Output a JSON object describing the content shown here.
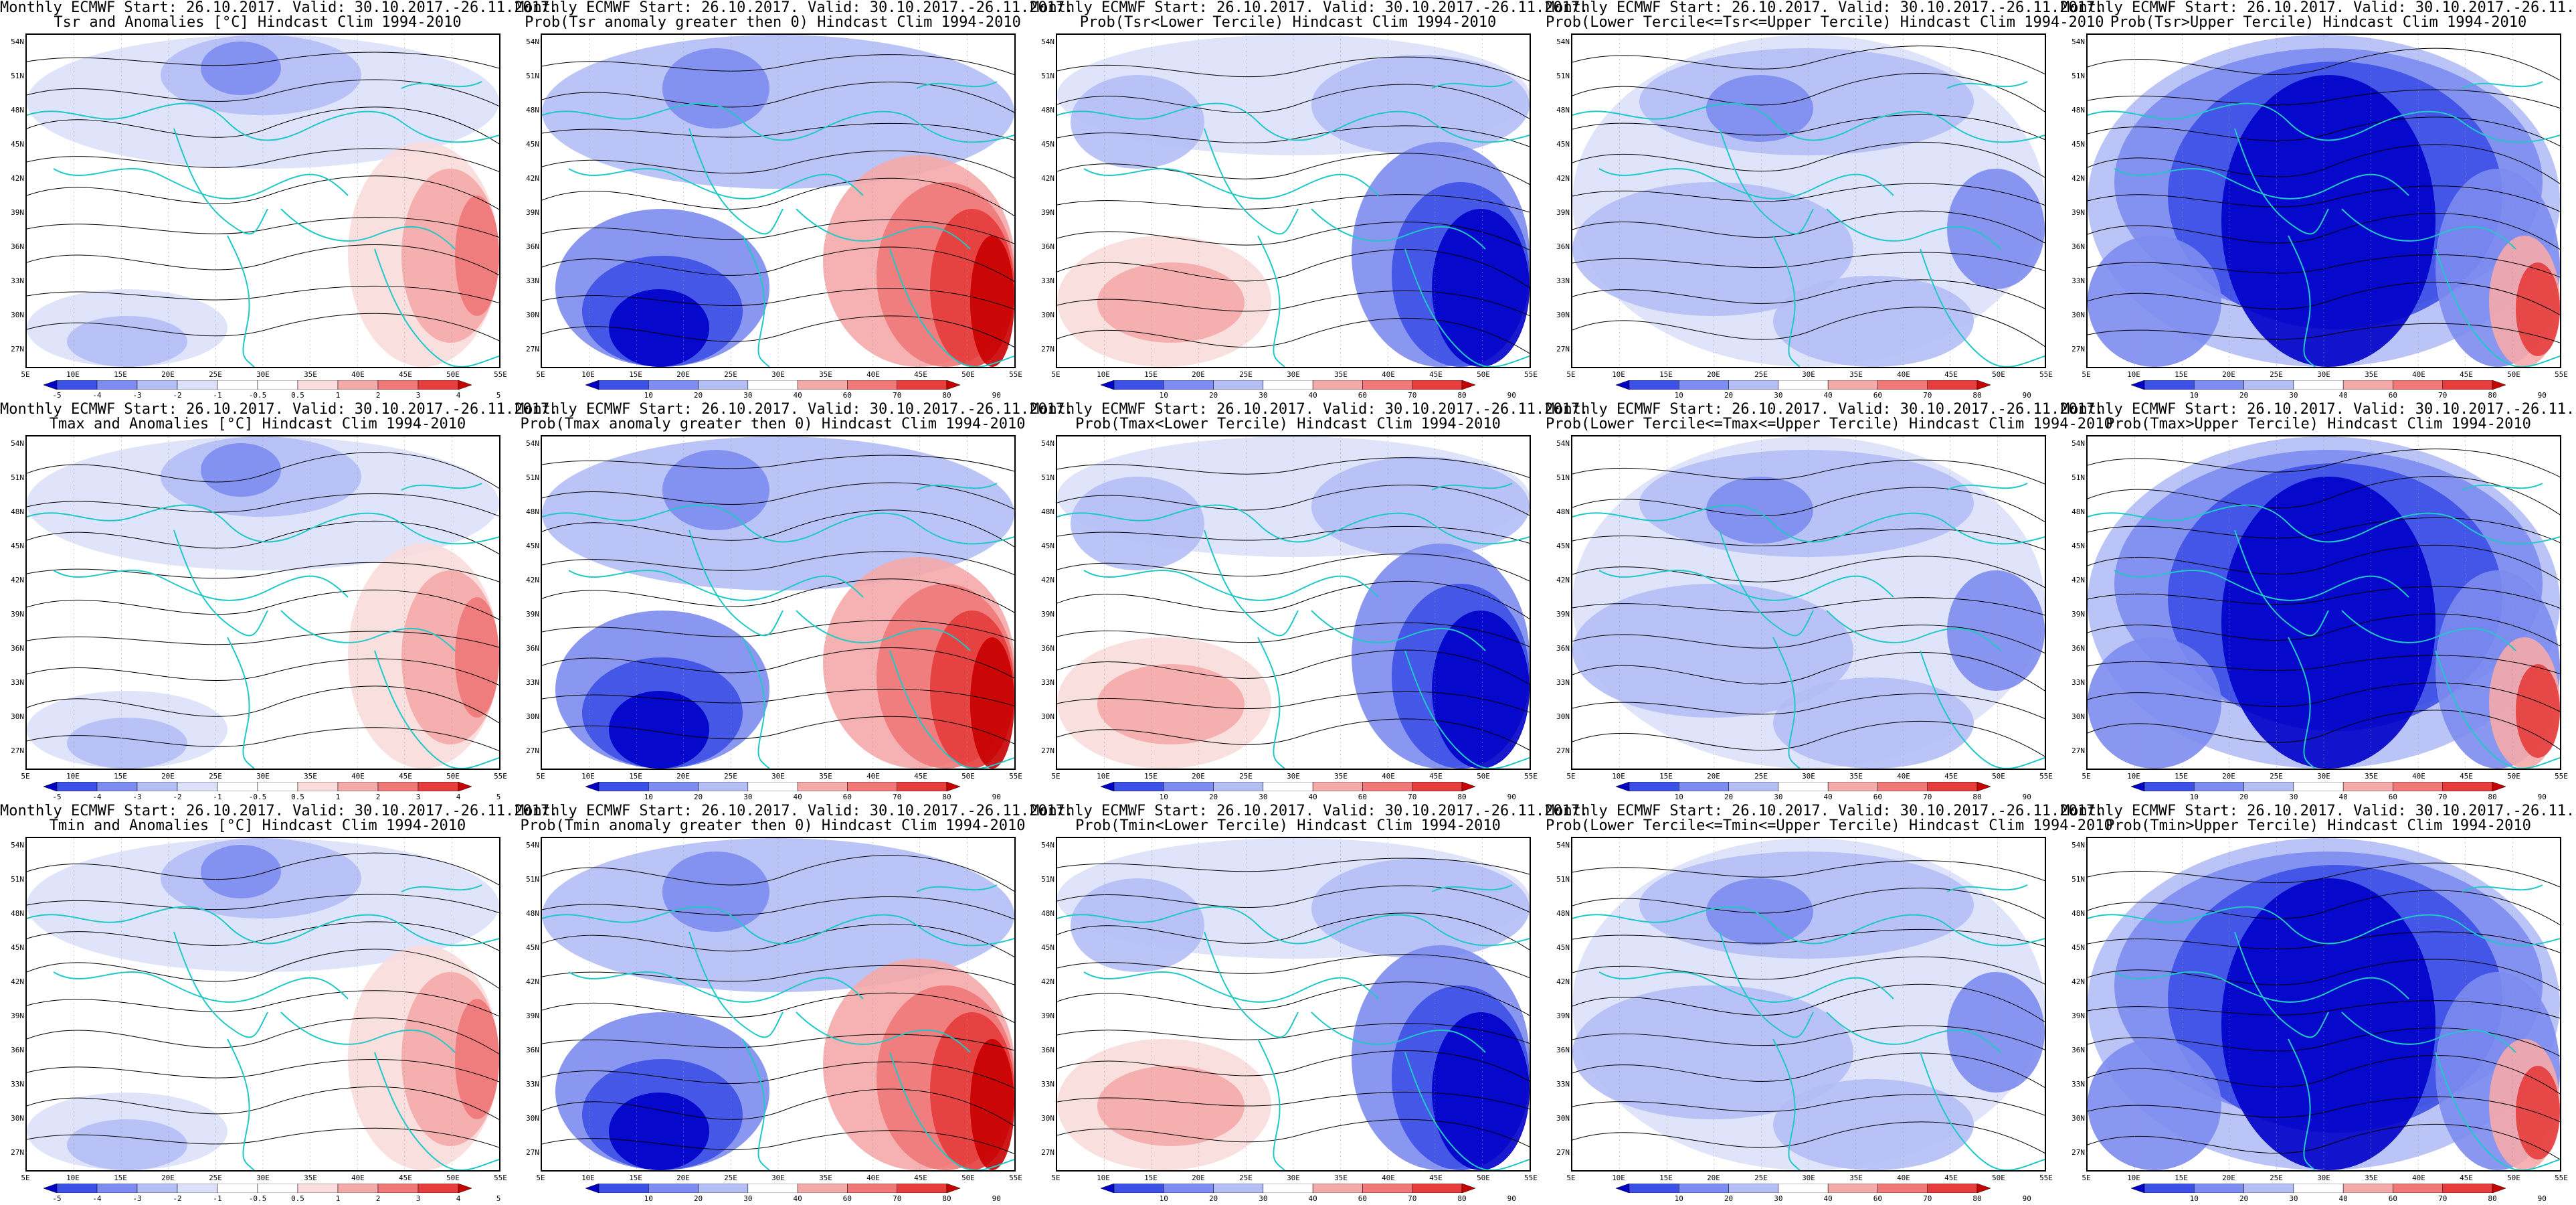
{
  "header_line": "Monthly ECMWF Start: 26.10.2017. Valid: 30.10.2017.-26.11.2017.",
  "lat_labels": [
    "54N",
    "51N",
    "48N",
    "45N",
    "42N",
    "39N",
    "36N",
    "33N",
    "30N",
    "27N"
  ],
  "lon_labels": [
    "5E",
    "10E",
    "15E",
    "20E",
    "25E",
    "30E",
    "35E",
    "40E",
    "45E",
    "50E",
    "55E"
  ],
  "anom_levels": [
    "-5",
    "-4",
    "-3",
    "-2",
    "-1",
    "-0.5",
    "0.5",
    "1",
    "2",
    "3",
    "4",
    "5"
  ],
  "prob_levels": [
    "10",
    "20",
    "30",
    "40",
    "60",
    "70",
    "80",
    "90"
  ],
  "colors": {
    "deep_blue": "#0000c8",
    "blue": "#3c50e6",
    "mid_blue": "#7d8cf0",
    "light_blue": "#b4bef5",
    "pale_blue": "#dce1fa",
    "white": "#ffffff",
    "pale_red": "#fadcdc",
    "light_red": "#f5aaaa",
    "mid_red": "#f07878",
    "red": "#e63c3c",
    "deep_red": "#c80000",
    "coast": "#20c8c8",
    "contour": "#000000"
  },
  "panels": [
    {
      "title": "Tsr and Anomalies [°C] Hindcast Clim 1994-2010",
      "kind": "anom",
      "scheme": 0
    },
    {
      "title": "Prob(Tsr anomaly greater then 0) Hindcast Clim 1994-2010",
      "kind": "prob",
      "scheme": 1
    },
    {
      "title": "Prob(Tsr<Lower Tercile) Hindcast Clim 1994-2010",
      "kind": "prob",
      "scheme": 2
    },
    {
      "title": "Prob(Lower Tercile<=Tsr<=Upper Tercile) Hindcast Clim 1994-2010",
      "kind": "prob",
      "scheme": 3
    },
    {
      "title": "Prob(Tsr>Upper Tercile) Hindcast Clim 1994-2010",
      "kind": "prob",
      "scheme": 4
    },
    {
      "title": "Tmax and Anomalies [°C] Hindcast Clim 1994-2010",
      "kind": "anom",
      "scheme": 0
    },
    {
      "title": "Prob(Tmax anomaly greater then 0) Hindcast Clim 1994-2010",
      "kind": "prob",
      "scheme": 1
    },
    {
      "title": "Prob(Tmax<Lower Tercile) Hindcast Clim 1994-2010",
      "kind": "prob",
      "scheme": 2
    },
    {
      "title": "Prob(Lower Tercile<=Tmax<=Upper Tercile) Hindcast Clim 1994-2010",
      "kind": "prob",
      "scheme": 3
    },
    {
      "title": "Prob(Tmax>Upper Tercile) Hindcast Clim 1994-2010",
      "kind": "prob",
      "scheme": 4
    },
    {
      "title": "Tmin and Anomalies [°C] Hindcast Clim 1994-2010",
      "kind": "anom",
      "scheme": 0
    },
    {
      "title": "Prob(Tmin anomaly greater then 0) Hindcast Clim 1994-2010",
      "kind": "prob",
      "scheme": 1
    },
    {
      "title": "Prob(Tmin<Lower Tercile) Hindcast Clim 1994-2010",
      "kind": "prob",
      "scheme": 2
    },
    {
      "title": "Prob(Lower Tercile<=Tmin<=Upper Tercile) Hindcast Clim 1994-2010",
      "kind": "prob",
      "scheme": 3
    },
    {
      "title": "Prob(Tmin>Upper Tercile) Hindcast Clim 1994-2010",
      "kind": "prob",
      "scheme": 4
    }
  ]
}
